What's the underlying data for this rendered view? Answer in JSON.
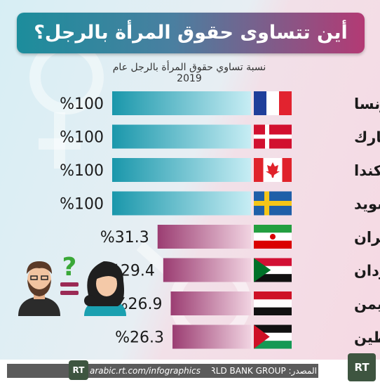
{
  "title": "أين تتساوى حقوق المرأة بالرجل؟",
  "subtitle": "نسبة تساوي حقوق المرأة بالرجل عام 2019",
  "chart_data": {
    "type": "bar",
    "orientation": "horizontal",
    "categories": [
      "فرنسا",
      "الدنمارك",
      "كندا",
      "السويد",
      "إيران",
      "السودان",
      "اليمن",
      "فلسطين"
    ],
    "values": [
      100,
      100,
      100,
      100,
      31.3,
      29.4,
      26.9,
      26.3
    ],
    "value_labels": [
      "%100",
      "%100",
      "%100",
      "%100",
      "%31.3",
      "%29.4",
      "%26.9",
      "%26.3"
    ],
    "flags": [
      "france-flag",
      "denmark-flag",
      "canada-flag",
      "sweden-flag",
      "iran-flag",
      "sudan-flag",
      "yemen-flag",
      "palestine-flag"
    ],
    "title": "نسبة تساوي حقوق المرأة بالرجل عام 2019",
    "xlim": [
      0,
      100
    ],
    "colors": {
      "high": "#1a9db0",
      "low": "#a3457b"
    }
  },
  "footer": {
    "source": "المصدر: WORLD BANK GROUP",
    "site": "arabic.rt.com/infographics",
    "logo_small": "RT",
    "logo_big": "RT"
  }
}
